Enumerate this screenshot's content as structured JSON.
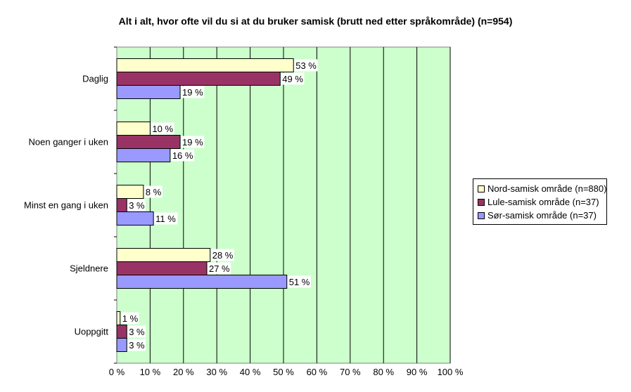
{
  "chart_data": {
    "type": "bar",
    "orientation": "horizontal",
    "title": "Alt i alt, hvor ofte vil du si at du bruker samisk (brutt ned etter språkområde) (n=954)",
    "categories": [
      "Daglig",
      "Noen ganger i uken",
      "Minst en gang i uken",
      "Sjeldnere",
      "Uoppgitt"
    ],
    "series": [
      {
        "name": "Nord-samisk område (n=880)",
        "color": "#ffffcc",
        "values": [
          53,
          10,
          8,
          28,
          1
        ]
      },
      {
        "name": "Lule-samisk område (n=37)",
        "color": "#993366",
        "values": [
          49,
          19,
          3,
          27,
          3
        ]
      },
      {
        "name": "Sør-samisk område (n=37)",
        "color": "#9999ff",
        "values": [
          19,
          16,
          11,
          51,
          3
        ]
      }
    ],
    "xlim": [
      0,
      100
    ],
    "x_ticks": [
      "0 %",
      "10 %",
      "20 %",
      "30 %",
      "40 %",
      "50 %",
      "60 %",
      "70 %",
      "80 %",
      "90 %",
      "100 %"
    ],
    "value_suffix": " %",
    "grid": true,
    "plot_background": "#ccffcc",
    "legend_position": "right"
  }
}
